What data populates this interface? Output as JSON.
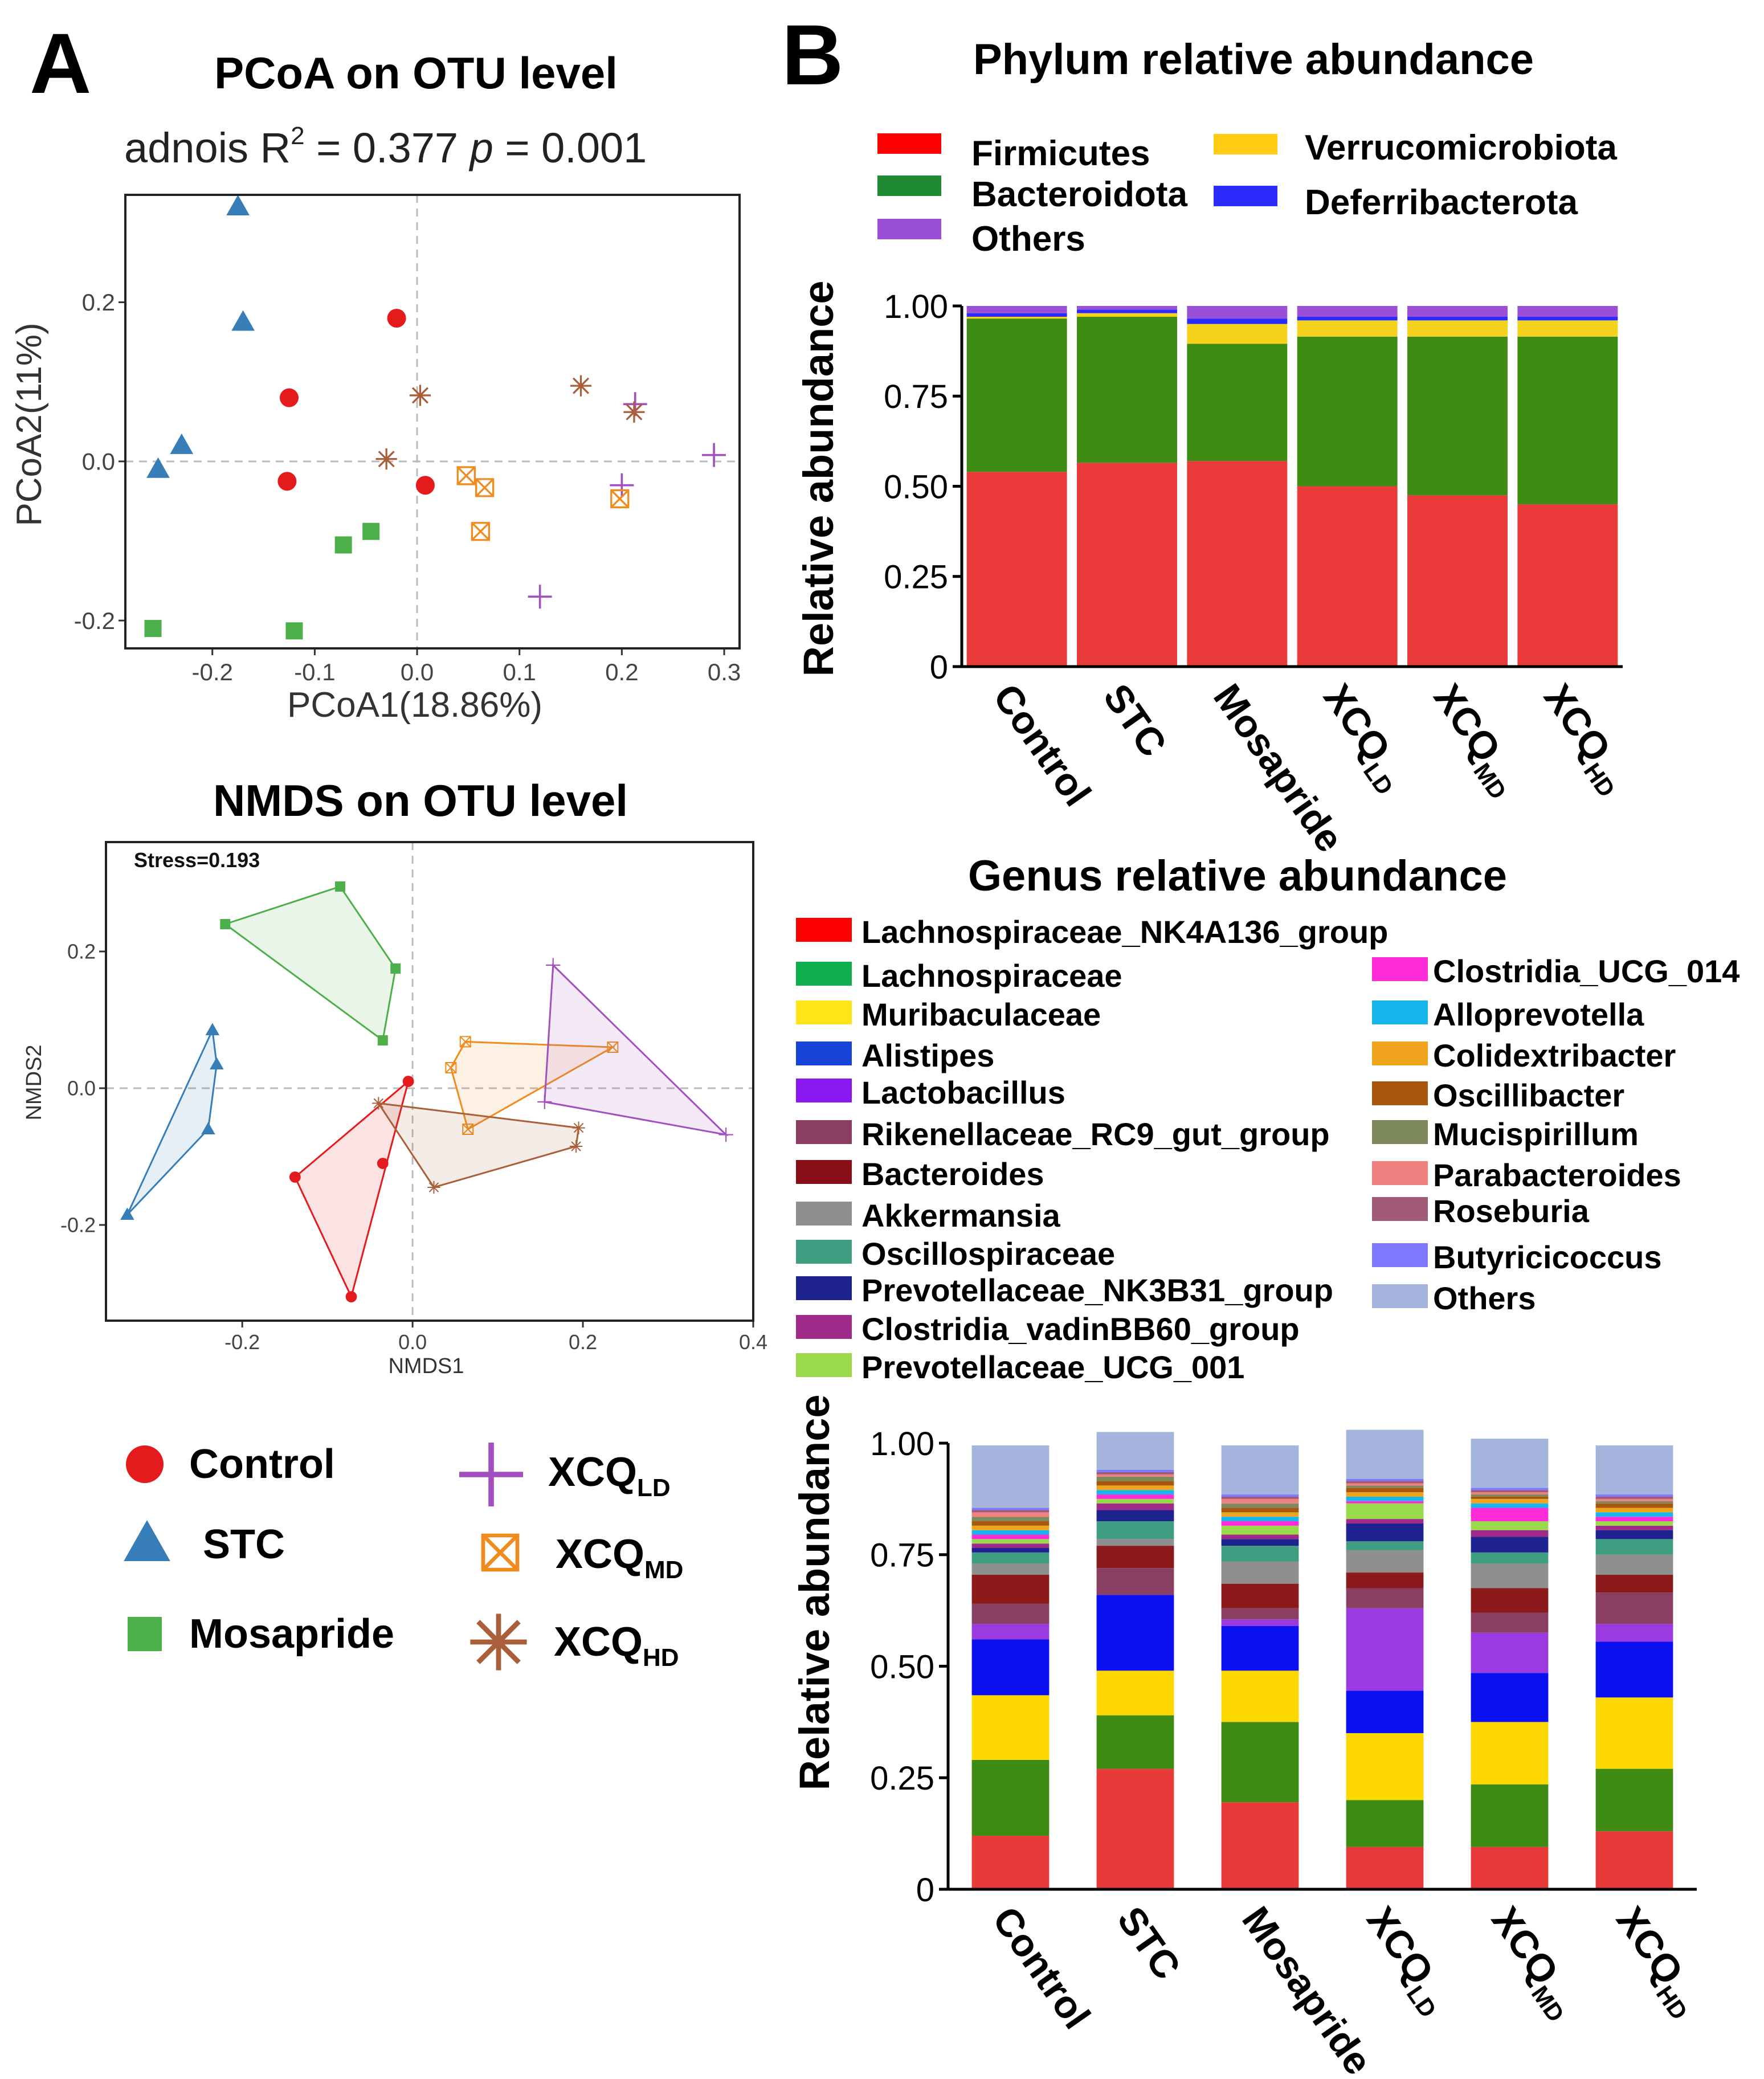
{
  "panel_labels": {
    "a": "A",
    "b": "B"
  },
  "colors": {
    "control": "#e41a1c",
    "stc": "#377eb8",
    "mosapride": "#4daf4a",
    "xcq_ld": "#a24fc0",
    "xcq_md": "#f08c1e",
    "xcq_hd": "#a85f3a",
    "grid_dash": "#bbbbbb"
  },
  "pcoa": {
    "title": "PCoA on OTU level",
    "stat_prefix": "adnois R",
    "stat_sup": "2",
    "stat_mid": " = 0.377 ",
    "stat_p": "p",
    "stat_suffix": " = 0.001",
    "xlabel": "PCoA1(18.86%)",
    "ylabel": "PCoA2(11%)",
    "xlim": [
      -0.285,
      0.315
    ],
    "ylim": [
      -0.235,
      0.335
    ],
    "xticks": [
      -0.2,
      -0.1,
      0.0,
      0.1,
      0.2,
      0.3
    ],
    "xtick_labels": [
      "-0.2",
      "-0.1",
      "0.0",
      "0.1",
      "0.2",
      "0.3"
    ],
    "yticks": [
      -0.2,
      0.0,
      0.2
    ],
    "ytick_labels": [
      "-0.2",
      "0.0",
      "0.2"
    ],
    "series": [
      {
        "group": "control",
        "shape": "circle",
        "points": [
          [
            -0.02,
            0.18
          ],
          [
            -0.125,
            0.08
          ],
          [
            -0.127,
            -0.025
          ],
          [
            0.008,
            -0.03
          ]
        ]
      },
      {
        "group": "stc",
        "shape": "triangle",
        "points": [
          [
            -0.175,
            0.32
          ],
          [
            -0.17,
            0.175
          ],
          [
            -0.23,
            0.02
          ],
          [
            -0.253,
            -0.01
          ]
        ]
      },
      {
        "group": "mosapride",
        "shape": "square",
        "points": [
          [
            -0.072,
            -0.105
          ],
          [
            -0.045,
            -0.088
          ],
          [
            -0.258,
            -0.21
          ],
          [
            -0.12,
            -0.213
          ]
        ]
      },
      {
        "group": "xcq_ld",
        "shape": "plus",
        "points": [
          [
            0.213,
            0.072
          ],
          [
            0.2,
            -0.03
          ],
          [
            0.29,
            0.008
          ],
          [
            0.12,
            -0.17
          ]
        ]
      },
      {
        "group": "xcq_md",
        "shape": "boxx",
        "points": [
          [
            0.048,
            -0.018
          ],
          [
            0.066,
            -0.033
          ],
          [
            0.062,
            -0.088
          ],
          [
            0.198,
            -0.047
          ]
        ]
      },
      {
        "group": "xcq_hd",
        "shape": "star",
        "points": [
          [
            0.003,
            0.083
          ],
          [
            -0.03,
            0.003
          ],
          [
            0.16,
            0.095
          ],
          [
            0.212,
            0.062
          ]
        ]
      }
    ]
  },
  "nmds": {
    "title": "NMDS on OTU level",
    "stress": "Stress=0.193",
    "xlabel": "NMDS1",
    "ylabel": "NMDS2",
    "xlim": [
      -0.36,
      0.4
    ],
    "ylim": [
      -0.34,
      0.36
    ],
    "xticks": [
      -0.2,
      0.0,
      0.2,
      0.4
    ],
    "xtick_labels": [
      "-0.2",
      "0.0",
      "0.2",
      "0.4"
    ],
    "yticks": [
      -0.2,
      0.0,
      0.2
    ],
    "ytick_labels": [
      "-0.2",
      "0.0",
      "0.2"
    ],
    "series": [
      {
        "group": "stc",
        "shape": "triangle",
        "points": [
          [
            -0.235,
            0.085
          ],
          [
            -0.23,
            0.035
          ],
          [
            -0.24,
            -0.06
          ],
          [
            -0.335,
            -0.185
          ]
        ]
      },
      {
        "group": "mosapride",
        "shape": "square",
        "points": [
          [
            -0.085,
            0.295
          ],
          [
            -0.22,
            0.24
          ],
          [
            -0.02,
            0.175
          ],
          [
            -0.035,
            0.07
          ]
        ]
      },
      {
        "group": "control",
        "shape": "circle",
        "points": [
          [
            -0.005,
            0.01
          ],
          [
            -0.035,
            -0.11
          ],
          [
            -0.138,
            -0.13
          ],
          [
            -0.072,
            -0.305
          ]
        ]
      },
      {
        "group": "xcq_md",
        "shape": "boxx",
        "points": [
          [
            0.062,
            0.068
          ],
          [
            0.045,
            0.03
          ],
          [
            0.065,
            -0.06
          ],
          [
            0.235,
            0.06
          ]
        ]
      },
      {
        "group": "xcq_ld",
        "shape": "plus",
        "points": [
          [
            0.165,
            0.18
          ],
          [
            0.155,
            -0.02
          ],
          [
            0.368,
            -0.068
          ]
        ]
      },
      {
        "group": "xcq_hd",
        "shape": "star",
        "points": [
          [
            -0.04,
            -0.022
          ],
          [
            0.025,
            -0.145
          ],
          [
            0.192,
            -0.085
          ],
          [
            0.195,
            -0.058
          ]
        ]
      }
    ]
  },
  "legend_a": [
    {
      "group": "control",
      "shape": "circle",
      "label": "Control",
      "sub": ""
    },
    {
      "group": "stc",
      "shape": "triangle",
      "label": "STC",
      "sub": ""
    },
    {
      "group": "mosapride",
      "shape": "square",
      "label": "Mosapride",
      "sub": ""
    },
    {
      "group": "xcq_ld",
      "shape": "plus",
      "label": "XCQ",
      "sub": "LD"
    },
    {
      "group": "xcq_md",
      "shape": "boxx",
      "label": "XCQ",
      "sub": "MD"
    },
    {
      "group": "xcq_hd",
      "shape": "star",
      "label": "XCQ",
      "sub": "HD"
    }
  ],
  "chart_data": [
    {
      "type": "scatter",
      "title": "PCoA on OTU level",
      "xlabel": "PCoA1(18.86%)",
      "ylabel": "PCoA2(11%)",
      "groups": [
        "Control",
        "STC",
        "Mosapride",
        "XCQLD",
        "XCQMD",
        "XCQHD"
      ],
      "note": "point coordinates are listed in pcoa.series"
    },
    {
      "type": "scatter",
      "title": "NMDS on OTU level",
      "xlabel": "NMDS1",
      "ylabel": "NMDS2",
      "groups": [
        "Control",
        "STC",
        "Mosapride",
        "XCQLD",
        "XCQMD",
        "XCQHD"
      ],
      "note": "point coordinates and convex hulls are listed in nmds.series"
    },
    {
      "type": "bar",
      "stacked": true,
      "title": "Phylum relative abundance",
      "ylabel": "Relative abundance",
      "ylim": [
        0,
        1
      ],
      "yticks": [
        0,
        0.25,
        0.5,
        0.75,
        1.0
      ],
      "ytick_labels": [
        "0",
        "0.25",
        "0.50",
        "0.75",
        "1.00"
      ],
      "categories": [
        {
          "label": "Control",
          "sub": ""
        },
        {
          "label": "STC",
          "sub": ""
        },
        {
          "label": "Mosapride",
          "sub": ""
        },
        {
          "label": "XCQ",
          "sub": "LD"
        },
        {
          "label": "XCQ",
          "sub": "MD"
        },
        {
          "label": "XCQ",
          "sub": "HD"
        }
      ],
      "legend": [
        {
          "name": "Firmicutes",
          "color": "#ff0000"
        },
        {
          "name": "Verrucomicrobiota",
          "color": "#ffcc11"
        },
        {
          "name": "Bacteroidota",
          "color": "#1e8a32"
        },
        {
          "name": "Deferribacterota",
          "color": "#2b2bff"
        },
        {
          "name": "Others",
          "color": "#9a4fd6"
        }
      ],
      "series": [
        {
          "name": "Firmicutes",
          "color": "#ea3a3a",
          "values": [
            0.54,
            0.565,
            0.57,
            0.5,
            0.475,
            0.45
          ]
        },
        {
          "name": "Bacteroidota",
          "color": "#3e8c14",
          "values": [
            0.425,
            0.405,
            0.325,
            0.415,
            0.44,
            0.465
          ]
        },
        {
          "name": "Verrucomicrobiota",
          "color": "#f5d21c",
          "values": [
            0.005,
            0.01,
            0.055,
            0.045,
            0.045,
            0.045
          ]
        },
        {
          "name": "Deferribacterota",
          "color": "#2b2bff",
          "values": [
            0.01,
            0.01,
            0.015,
            0.01,
            0.01,
            0.01
          ]
        },
        {
          "name": "Others",
          "color": "#9a4fd6",
          "values": [
            0.02,
            0.01,
            0.035,
            0.03,
            0.03,
            0.03
          ]
        }
      ]
    },
    {
      "type": "bar",
      "stacked": true,
      "title": "Genus relative abundance",
      "ylabel": "Relative abundance",
      "ylim": [
        0,
        1
      ],
      "yticks": [
        0,
        0.25,
        0.5,
        0.75,
        1.0
      ],
      "ytick_labels": [
        "0",
        "0.25",
        "0.50",
        "0.75",
        "1.00"
      ],
      "categories": [
        {
          "label": "Control",
          "sub": ""
        },
        {
          "label": "STC",
          "sub": ""
        },
        {
          "label": "Mosapride",
          "sub": ""
        },
        {
          "label": "XCQ",
          "sub": "LD"
        },
        {
          "label": "XCQ",
          "sub": "MD"
        },
        {
          "label": "XCQ",
          "sub": "HD"
        }
      ],
      "legend_left": [
        {
          "name": "Lachnospiraceae_NK4A136_group",
          "color": "#ff0000"
        },
        {
          "name": "Lachnospiraceae",
          "color": "#0fae4c"
        },
        {
          "name": "Muribaculaceae",
          "color": "#ffe418"
        },
        {
          "name": "Alistipes",
          "color": "#1843d8"
        },
        {
          "name": "Lactobacillus",
          "color": "#8a18f0"
        },
        {
          "name": "Rikenellaceae_RC9_gut_group",
          "color": "#8a3e62"
        },
        {
          "name": "Bacteroides",
          "color": "#8a0e18"
        },
        {
          "name": "Akkermansia",
          "color": "#8f8f8f"
        },
        {
          "name": "Oscillospiraceae",
          "color": "#3f9e82"
        },
        {
          "name": "Prevotellaceae_NK3B31_group",
          "color": "#1e238f"
        },
        {
          "name": "Clostridia_vadinBB60_group",
          "color": "#a02a8a"
        },
        {
          "name": "Prevotellaceae_UCG_001",
          "color": "#9ad94a"
        }
      ],
      "legend_right": [
        {
          "name": "Clostridia_UCG_014",
          "color": "#ff2ad8"
        },
        {
          "name": "Alloprevotella",
          "color": "#18b4ee"
        },
        {
          "name": "Colidextribacter",
          "color": "#f0a41e"
        },
        {
          "name": "Oscillibacter",
          "color": "#a8580e"
        },
        {
          "name": "Mucispirillum",
          "color": "#7e8a5e"
        },
        {
          "name": "Parabacteroides",
          "color": "#f08080"
        },
        {
          "name": "Roseburia",
          "color": "#a05a78"
        },
        {
          "name": "Butyricicoccus",
          "color": "#7e78ff"
        },
        {
          "name": "Others",
          "color": "#a4b4dc"
        }
      ],
      "series": [
        {
          "name": "Lachnospiraceae_NK4A136_group",
          "color": "#e93a3a",
          "values": [
            0.12,
            0.27,
            0.195,
            0.095,
            0.095,
            0.13
          ]
        },
        {
          "name": "Lachnospiraceae",
          "color": "#3f8c14",
          "values": [
            0.17,
            0.12,
            0.18,
            0.105,
            0.14,
            0.14
          ]
        },
        {
          "name": "Muribaculaceae",
          "color": "#fcd800",
          "values": [
            0.145,
            0.1,
            0.115,
            0.15,
            0.14,
            0.16
          ]
        },
        {
          "name": "Alistipes",
          "color": "#0a10f0",
          "values": [
            0.125,
            0.17,
            0.1,
            0.095,
            0.11,
            0.125
          ]
        },
        {
          "name": "Lactobacillus",
          "color": "#9a3ae0",
          "values": [
            0.035,
            0.0,
            0.015,
            0.185,
            0.09,
            0.04
          ]
        },
        {
          "name": "Rikenellaceae_RC9_gut_group",
          "color": "#8a3e62",
          "values": [
            0.045,
            0.06,
            0.025,
            0.045,
            0.045,
            0.07
          ]
        },
        {
          "name": "Bacteroides",
          "color": "#8c1a1a",
          "values": [
            0.065,
            0.05,
            0.055,
            0.035,
            0.055,
            0.04
          ]
        },
        {
          "name": "Akkermansia",
          "color": "#8f8f8f",
          "values": [
            0.025,
            0.015,
            0.05,
            0.05,
            0.055,
            0.045
          ]
        },
        {
          "name": "Oscillospiraceae",
          "color": "#3f9e82",
          "values": [
            0.025,
            0.04,
            0.035,
            0.02,
            0.025,
            0.035
          ]
        },
        {
          "name": "Prevotellaceae_NK3B31_group",
          "color": "#1e238f",
          "values": [
            0.01,
            0.025,
            0.015,
            0.04,
            0.035,
            0.02
          ]
        },
        {
          "name": "Clostridia_vadinBB60_group",
          "color": "#a02a8a",
          "values": [
            0.01,
            0.015,
            0.01,
            0.01,
            0.015,
            0.01
          ]
        },
        {
          "name": "Prevotellaceae_UCG_001",
          "color": "#9ad94a",
          "values": [
            0.01,
            0.01,
            0.02,
            0.035,
            0.02,
            0.01
          ]
        },
        {
          "name": "Clostridia_UCG_014",
          "color": "#ff2ad8",
          "values": [
            0.01,
            0.01,
            0.01,
            0.005,
            0.03,
            0.01
          ]
        },
        {
          "name": "Alloprevotella",
          "color": "#18b4ee",
          "values": [
            0.01,
            0.01,
            0.01,
            0.01,
            0.01,
            0.01
          ]
        },
        {
          "name": "Colidextribacter",
          "color": "#f0a41e",
          "values": [
            0.01,
            0.01,
            0.01,
            0.01,
            0.01,
            0.01
          ]
        },
        {
          "name": "Oscillibacter",
          "color": "#a8580e",
          "values": [
            0.01,
            0.01,
            0.01,
            0.01,
            0.005,
            0.01
          ]
        },
        {
          "name": "Mucispirillum",
          "color": "#7e8a5e",
          "values": [
            0.01,
            0.01,
            0.01,
            0.005,
            0.005,
            0.005
          ]
        },
        {
          "name": "Parabacteroides",
          "color": "#f08080",
          "values": [
            0.01,
            0.005,
            0.01,
            0.005,
            0.005,
            0.005
          ]
        },
        {
          "name": "Roseburia",
          "color": "#a05a78",
          "values": [
            0.005,
            0.005,
            0.005,
            0.005,
            0.005,
            0.005
          ]
        },
        {
          "name": "Butyricicoccus",
          "color": "#7e78ff",
          "values": [
            0.005,
            0.005,
            0.005,
            0.005,
            0.005,
            0.005
          ]
        },
        {
          "name": "Others",
          "color": "#a4b4dc",
          "values": [
            0.14,
            0.085,
            0.11,
            0.11,
            0.11,
            0.11
          ]
        }
      ]
    }
  ]
}
